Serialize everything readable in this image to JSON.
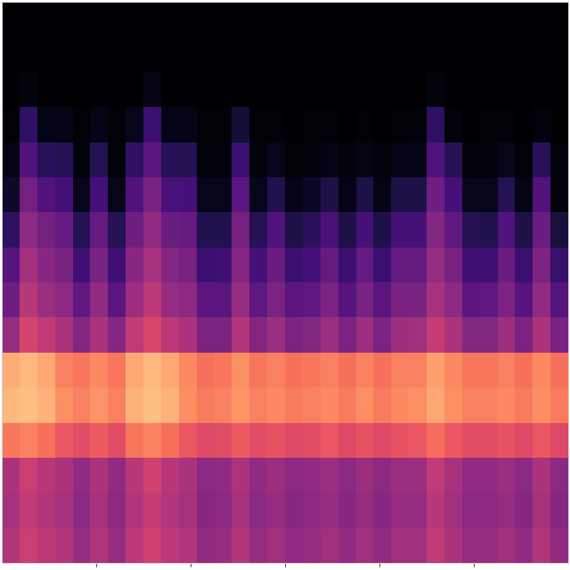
{
  "chart_data": {
    "type": "heatmap",
    "color": "magma",
    "zlim": [
      -80,
      0
    ],
    "xlim": [
      0,
      6
    ],
    "xticks": [
      1,
      2,
      3,
      4,
      5
    ],
    "ylim": [
      0,
      16
    ],
    "yticks": [],
    "tick_labels": false,
    "x_edges": [
      0,
      0.1875,
      0.375,
      0.5625,
      0.75,
      0.9375,
      1.125,
      1.3125,
      1.5,
      1.6875,
      1.875,
      2.0625,
      2.25,
      2.4375,
      2.625,
      2.8125,
      3,
      3.1875,
      3.375,
      3.5625,
      3.75,
      3.9375,
      4.125,
      4.3125,
      4.5,
      4.6875,
      4.875,
      5.0625,
      5.25,
      5.4375,
      5.625,
      5.8125,
      6
    ],
    "y_edges": [
      0,
      1,
      2,
      3,
      4,
      5,
      6,
      7,
      8,
      9,
      10,
      11,
      12,
      13,
      14,
      15,
      16
    ],
    "cells": [
      [
        -41,
        -36,
        -39,
        -41,
        -46,
        -41,
        -46,
        -39,
        -35,
        -39,
        -41,
        -47,
        -46,
        -41,
        -46,
        -44,
        -47,
        -46,
        -44,
        -47,
        -44,
        -47,
        -44,
        -44,
        -38,
        -42,
        -46,
        -46,
        -44,
        -47,
        -41,
        -47
      ],
      [
        -43,
        -38,
        -41,
        -43,
        -48,
        -43,
        -48,
        -41,
        -37,
        -41,
        -43,
        -49,
        -48,
        -43,
        -48,
        -46,
        -49,
        -48,
        -46,
        -49,
        -46,
        -49,
        -46,
        -46,
        -40,
        -44,
        -48,
        -48,
        -46,
        -49,
        -43,
        -49
      ],
      [
        -42,
        -36,
        -40,
        -42,
        -47,
        -42,
        -47,
        -40,
        -35,
        -40,
        -42,
        -48,
        -47,
        -42,
        -47,
        -45,
        -48,
        -47,
        -45,
        -48,
        -45,
        -48,
        -45,
        -45,
        -38,
        -43,
        -47,
        -47,
        -45,
        -48,
        -42,
        -48
      ],
      [
        -23,
        -21,
        -24,
        -29,
        -31,
        -28,
        -31,
        -23,
        -21,
        -24,
        -29,
        -32,
        -31,
        -28,
        -31,
        -30,
        -32,
        -31,
        -29,
        -32,
        -30,
        -32,
        -30,
        -29,
        -25,
        -29,
        -31,
        -31,
        -30,
        -32,
        -29,
        -32
      ],
      [
        -12,
        -11,
        -13,
        -19,
        -21,
        -18,
        -21,
        -13,
        -11,
        -13,
        -19,
        -22,
        -21,
        -18,
        -21,
        -20,
        -22,
        -21,
        -20,
        -22,
        -19,
        -22,
        -20,
        -19,
        -15,
        -19,
        -21,
        -21,
        -20,
        -22,
        -19,
        -22
      ],
      [
        -14,
        -12,
        -15,
        -21,
        -23,
        -20,
        -23,
        -15,
        -12,
        -15,
        -20,
        -24,
        -23,
        -19,
        -23,
        -21,
        -24,
        -23,
        -21,
        -24,
        -21,
        -24,
        -21,
        -21,
        -16,
        -20,
        -23,
        -23,
        -21,
        -24,
        -20,
        -24
      ],
      [
        -46,
        -34,
        -38,
        -42,
        -50,
        -42,
        -50,
        -38,
        -33,
        -39,
        -42,
        -51,
        -51,
        -41,
        -50,
        -45,
        -51,
        -50,
        -45,
        -51,
        -45,
        -51,
        -45,
        -44,
        -37,
        -42,
        -50,
        -50,
        -45,
        -51,
        -42,
        -52
      ],
      [
        -54,
        -40,
        -45,
        -48,
        -57,
        -47,
        -58,
        -45,
        -39,
        -46,
        -48,
        -58,
        -58,
        -46,
        -57,
        -51,
        -58,
        -57,
        -51,
        -59,
        -52,
        -58,
        -52,
        -52,
        -43,
        -48,
        -58,
        -57,
        -51,
        -59,
        -47,
        -59
      ],
      [
        -59,
        -44,
        -49,
        -52,
        -63,
        -52,
        -63,
        -49,
        -43,
        -50,
        -52,
        -64,
        -63,
        -50,
        -62,
        -55,
        -64,
        -62,
        -56,
        -64,
        -56,
        -64,
        -56,
        -56,
        -46,
        -52,
        -63,
        -63,
        -55,
        -64,
        -51,
        -65
      ],
      [
        -66,
        -48,
        -53,
        -56,
        -68,
        -56,
        -68,
        -54,
        -47,
        -55,
        -56,
        -69,
        -69,
        -53,
        -68,
        -60,
        -70,
        -67,
        -61,
        -70,
        -62,
        -70,
        -62,
        -62,
        -50,
        -57,
        -68,
        -69,
        -60,
        -70,
        -55,
        -71
      ],
      [
        -74,
        -53,
        -60,
        -62,
        -76,
        -62,
        -76,
        -60,
        -52,
        -61,
        -62,
        -76,
        -76,
        -58,
        -76,
        -69,
        -77,
        -75,
        -70,
        -77,
        -70,
        -77,
        -70,
        -70,
        -54,
        -62,
        -76,
        -76,
        -68,
        -77,
        -60,
        -78
      ],
      [
        -77,
        -60,
        -67,
        -68,
        -78,
        -68,
        -78,
        -66,
        -58,
        -68,
        -68,
        -78,
        -78,
        -64,
        -78,
        -76,
        -79,
        -78,
        -77,
        -78,
        -77,
        -78,
        -77,
        -77,
        -60,
        -68,
        -78,
        -78,
        -76,
        -79,
        -67,
        -79
      ],
      [
        -79,
        -66,
        -77,
        -77,
        -79,
        -77,
        -79,
        -76,
        -64,
        -77,
        -77,
        -79,
        -79,
        -72,
        -79,
        -79,
        -80,
        -79,
        -79,
        -80,
        -79,
        -80,
        -79,
        -79,
        -66,
        -78,
        -80,
        -79,
        -79,
        -80,
        -78,
        -80
      ],
      [
        -80,
        -78,
        -80,
        -80,
        -80,
        -80,
        -80,
        -80,
        -77,
        -80,
        -80,
        -80,
        -80,
        -80,
        -80,
        -80,
        -80,
        -80,
        -80,
        -80,
        -80,
        -80,
        -80,
        -80,
        -78,
        -80,
        -80,
        -80,
        -80,
        -80,
        -80,
        -80
      ],
      [
        -80,
        -80,
        -80,
        -80,
        -80,
        -80,
        -80,
        -80,
        -80,
        -80,
        -80,
        -80,
        -80,
        -80,
        -80,
        -80,
        -80,
        -80,
        -80,
        -80,
        -80,
        -80,
        -80,
        -80,
        -80,
        -80,
        -80,
        -80,
        -80,
        -80,
        -80,
        -80
      ],
      [
        -80,
        -80,
        -80,
        -80,
        -80,
        -80,
        -80,
        -80,
        -80,
        -80,
        -80,
        -80,
        -80,
        -80,
        -80,
        -80,
        -80,
        -80,
        -80,
        -80,
        -80,
        -80,
        -80,
        -80,
        -80,
        -80,
        -80,
        -80,
        -80,
        -80,
        -80,
        -80
      ]
    ]
  }
}
